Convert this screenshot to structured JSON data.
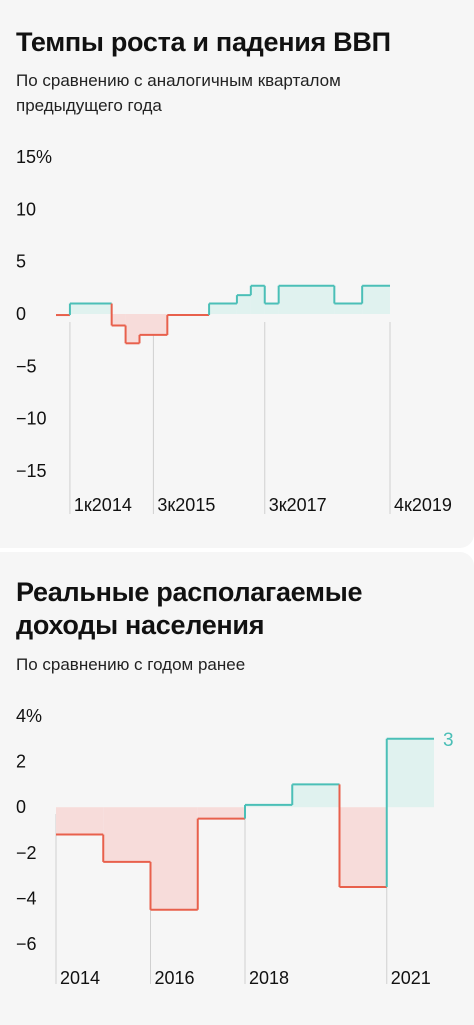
{
  "gdp": {
    "title": "Темпы роста и падения ВВП",
    "subtitle": "По сравнению с аналогичным кварталом предыдущего года"
  },
  "income": {
    "title": "Реальные располагаемые доходы населения",
    "subtitle": "По сравнению с годом ранее"
  },
  "colors": {
    "positive_line": "#4bbfb7",
    "positive_fill": "#e0f2ef",
    "negative_line": "#e8604c",
    "negative_fill": "#f7dcda",
    "gridline": "#d0d0d0",
    "panel_bg": "#f6f6f6"
  },
  "chart_data": [
    {
      "type": "area",
      "style": "step",
      "title": "Темпы роста и падения ВВП",
      "subtitle": "По сравнению с аналогичным кварталом предыдущего года",
      "yunit": "%",
      "ylim": [
        -15,
        15
      ],
      "yticks": [
        15,
        10,
        5,
        0,
        -5,
        -10,
        -15
      ],
      "ytick_labels": [
        "15%",
        "10",
        "5",
        "0",
        "-5",
        "-10",
        "-15"
      ],
      "x_range": [
        "4к2013",
        "4к2019"
      ],
      "xtick_labels": [
        {
          "label": "1к2014",
          "at": "1к2014"
        },
        {
          "label": "3к2015",
          "at": "3к2015"
        },
        {
          "label": "3к2017",
          "at": "3к2017"
        },
        {
          "label": "4к2019",
          "at": "4к2019"
        }
      ],
      "steps": [
        {
          "from": "4к2013",
          "to": "1к2014",
          "value": -0.1
        },
        {
          "from": "1к2014",
          "to": "4к2014",
          "value": 1.0
        },
        {
          "from": "4к2014",
          "to": "1к2015",
          "value": -1.1
        },
        {
          "from": "1к2015",
          "to": "2к2015",
          "value": -2.8
        },
        {
          "from": "2к2015",
          "to": "4к2015",
          "value": -2.0
        },
        {
          "from": "4к2015",
          "to": "3к2016",
          "value": -0.1
        },
        {
          "from": "3к2016",
          "to": "1к2017",
          "value": 1.0
        },
        {
          "from": "1к2017",
          "to": "2к2017",
          "value": 1.8
        },
        {
          "from": "2к2017",
          "to": "3к2017",
          "value": 2.7
        },
        {
          "from": "3к2017",
          "to": "4к2017",
          "value": 1.0
        },
        {
          "from": "4к2017",
          "to": "4к2018",
          "value": 2.7
        },
        {
          "from": "4к2018",
          "to": "2к2019",
          "value": 1.0
        },
        {
          "from": "2к2019",
          "to": "4к2019",
          "value": 2.7
        }
      ]
    },
    {
      "type": "area",
      "style": "step",
      "title": "Реальные располагаемые доходы населения",
      "subtitle": "По сравнению с годом ранее",
      "yunit": "%",
      "ylim": [
        -6,
        4
      ],
      "yticks": [
        4,
        2,
        0,
        -2,
        -4,
        -6
      ],
      "ytick_labels": [
        "4%",
        "2",
        "0",
        "-2",
        "-4",
        "-6"
      ],
      "x_range": [
        2014,
        2022
      ],
      "xtick_labels": [
        {
          "label": "2014",
          "at": 2014
        },
        {
          "label": "2016",
          "at": 2016
        },
        {
          "label": "2018",
          "at": 2018
        },
        {
          "label": "2021",
          "at": 2021
        }
      ],
      "steps": [
        {
          "from": 2014,
          "to": 2015,
          "value": -1.2
        },
        {
          "from": 2015,
          "to": 2016,
          "value": -2.4
        },
        {
          "from": 2016,
          "to": 2017,
          "value": -4.5
        },
        {
          "from": 2017,
          "to": 2018,
          "value": -0.5
        },
        {
          "from": 2018,
          "to": 2019,
          "value": 0.1
        },
        {
          "from": 2019,
          "to": 2020,
          "value": 1.0
        },
        {
          "from": 2020,
          "to": 2021,
          "value": -3.5
        },
        {
          "from": 2021,
          "to": 2022,
          "value": 3.0
        }
      ],
      "end_label": "3"
    }
  ]
}
